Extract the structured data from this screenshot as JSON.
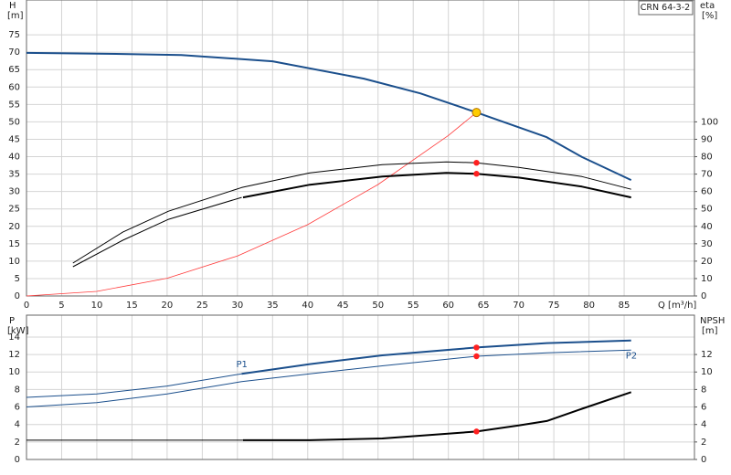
{
  "chart_data": [
    {
      "type": "line",
      "title": "CRN 64-3-2",
      "ylabel": "H",
      "yunit": "[m]",
      "y2label": "eta",
      "y2unit": "[%]",
      "xlabel": "Q [m³/h]",
      "xlim": [
        0,
        95
      ],
      "xticks": [
        0,
        5,
        10,
        15,
        20,
        25,
        30,
        35,
        40,
        45,
        50,
        55,
        60,
        65,
        70,
        75,
        80,
        85
      ],
      "ylim": [
        0,
        85
      ],
      "yticks": [
        0,
        5,
        10,
        15,
        20,
        25,
        30,
        35,
        40,
        45,
        50,
        55,
        60,
        65,
        70,
        75
      ],
      "y2lim": [
        0,
        170
      ],
      "y2ticks": [
        0,
        10,
        20,
        30,
        40,
        50,
        60,
        70,
        80,
        90,
        100
      ],
      "grid": true,
      "series": [
        {
          "color": "#1b4f8c",
          "width": 2,
          "x": [
            0,
            10,
            22,
            35,
            48,
            56,
            64,
            74,
            79,
            86
          ],
          "values": [
            69.8,
            69.6,
            69.2,
            67.4,
            62.4,
            58.2,
            52.7,
            45.6,
            39.9,
            33.3
          ]
        },
        {
          "color": "#ff3b3b",
          "width": 0.8,
          "x": [
            0,
            10,
            20,
            30,
            40,
            50,
            60,
            64
          ],
          "values": [
            0,
            1.3,
            5.1,
            11.5,
            20.5,
            32,
            46.1,
            52.7
          ]
        },
        {
          "color": "#000000",
          "width": 1,
          "axis": "y2",
          "x": [
            6.6,
            13.7,
            20.2,
            30.6,
            40.3,
            50.6,
            59.7,
            64,
            70,
            79,
            86
          ],
          "values": [
            18.9,
            36.7,
            48.7,
            62.3,
            70.7,
            75.4,
            77,
            76.5,
            73.8,
            68.6,
            61.3
          ]
        },
        {
          "color": "#000000",
          "width": 1,
          "axis": "y2",
          "x": [
            6.6,
            13.7,
            20.2,
            30.6
          ],
          "values": [
            16.8,
            32,
            44,
            56.6
          ]
        },
        {
          "color": "#000000",
          "width": 2,
          "axis": "y2",
          "x": [
            30.8,
            40.3,
            50.6,
            59.7,
            64,
            70,
            79,
            86
          ],
          "values": [
            56.6,
            63.9,
            68.6,
            70.7,
            70.2,
            68,
            62.8,
            56.6
          ]
        }
      ],
      "points": [
        {
          "x": 64,
          "y": 52.7,
          "color": "#ffcc00"
        },
        {
          "x": 64,
          "y": 76.5,
          "color": "#ff2020",
          "axis": "y2"
        },
        {
          "x": 64,
          "y": 70.2,
          "color": "#ff2020",
          "axis": "y2"
        }
      ]
    },
    {
      "type": "line",
      "ylabel": "P",
      "yunit": "[kW]",
      "y2label": "NPSH",
      "y2unit": "[m]",
      "xlim": [
        0,
        95
      ],
      "xticks": [
        0,
        5,
        10,
        15,
        20,
        25,
        30,
        35,
        40,
        45,
        50,
        55,
        60,
        65,
        70,
        75,
        80,
        85
      ],
      "ylim": [
        0,
        16.5
      ],
      "yticks": [
        0,
        2,
        4,
        6,
        8,
        10,
        12,
        14
      ],
      "y2lim": [
        0,
        16.5
      ],
      "y2ticks": [
        0,
        2,
        4,
        6,
        8,
        10,
        12
      ],
      "grid": true,
      "series": [
        {
          "name": "P1",
          "color": "#1b4f8c",
          "width": 1,
          "x": [
            0,
            10,
            20,
            30.6
          ],
          "values": [
            7.1,
            7.5,
            8.4,
            9.8
          ]
        },
        {
          "color": "#1b4f8c",
          "width": 2,
          "x": [
            30.6,
            40.3,
            50.6,
            64,
            74,
            86
          ],
          "values": [
            9.8,
            10.9,
            11.9,
            12.8,
            13.3,
            13.6
          ]
        },
        {
          "name": "P2",
          "color": "#1b4f8c",
          "width": 1,
          "x": [
            0,
            10,
            20,
            30.6,
            40.3,
            50.6,
            64,
            74,
            86
          ],
          "values": [
            6,
            6.5,
            7.5,
            8.9,
            9.8,
            10.7,
            11.8,
            12.2,
            12.5
          ]
        },
        {
          "color": "#000000",
          "width": 1,
          "axis": "y2",
          "x": [
            0,
            30.8
          ],
          "values": [
            2.2,
            2.2
          ]
        },
        {
          "color": "#000000",
          "width": 2,
          "axis": "y2",
          "x": [
            30.8,
            40.3,
            50.6,
            64,
            70,
            74,
            79,
            86
          ],
          "values": [
            2.2,
            2.2,
            2.4,
            3.2,
            3.9,
            4.4,
            5.8,
            7.7
          ]
        }
      ],
      "points": [
        {
          "x": 64,
          "y": 12.8,
          "color": "#ff2020"
        },
        {
          "x": 64,
          "y": 11.8,
          "color": "#ff2020"
        },
        {
          "x": 64,
          "y": 3.2,
          "color": "#ff2020",
          "axis": "y2"
        }
      ]
    }
  ]
}
